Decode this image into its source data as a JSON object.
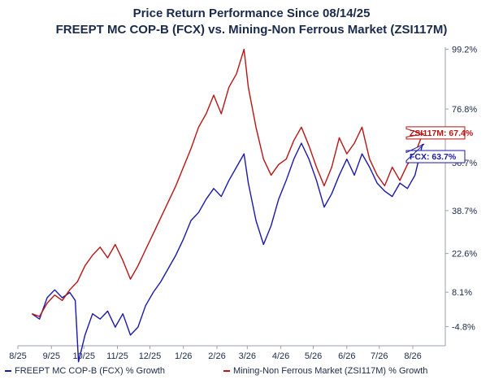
{
  "chart_data": {
    "type": "line",
    "title": "Price Return Performance Since 08/14/25",
    "subtitle": "FREEPT MC COP-B (FCX)   vs.   Mining-Non Ferrous Market (ZSI117M)",
    "ylim": [
      -12,
      100
    ],
    "y_ticks": [
      99.2,
      76.8,
      56.7,
      38.7,
      22.6,
      8.1,
      -4.8
    ],
    "y_tick_labels": [
      "99.2%",
      "76.8%",
      "56.7%",
      "38.7%",
      "22.6%",
      "8.1%",
      "-4.8%"
    ],
    "x_ticks": [
      "2025-08-01",
      "2025-09-01",
      "2025-10-01",
      "2025-11-01",
      "2025-12-01",
      "2026-01-01",
      "2026-02-01",
      "2026-03-01",
      "2026-04-01",
      "2026-05-01",
      "2026-06-01",
      "2026-07-01",
      "2026-08-01"
    ],
    "x_tick_labels": [
      "8/25",
      "9/25",
      "10/25",
      "11/25",
      "12/25",
      "1/26",
      "2/26",
      "3/26",
      "4/26",
      "5/26",
      "6/26",
      "7/26",
      "8/26"
    ],
    "grid": false,
    "legend_position": "bottom",
    "series": [
      {
        "name": "FREEPT MC COP-B (FCX) % Growth",
        "end_label": "FCX: 63.7%",
        "color": "#1a1aa8",
        "points": [
          [
            "2025-08-14",
            0
          ],
          [
            "2025-08-21",
            -2
          ],
          [
            "2025-08-28",
            6
          ],
          [
            "2025-09-04",
            9
          ],
          [
            "2025-09-11",
            6
          ],
          [
            "2025-09-18",
            8
          ],
          [
            "2025-09-23",
            5
          ],
          [
            "2025-09-26",
            -18
          ],
          [
            "2025-10-02",
            -8
          ],
          [
            "2025-10-09",
            0
          ],
          [
            "2025-10-16",
            -2
          ],
          [
            "2025-10-23",
            1
          ],
          [
            "2025-10-30",
            -5
          ],
          [
            "2025-11-06",
            0
          ],
          [
            "2025-11-13",
            -8
          ],
          [
            "2025-11-20",
            -5
          ],
          [
            "2025-11-27",
            3
          ],
          [
            "2025-12-04",
            8
          ],
          [
            "2025-12-11",
            12
          ],
          [
            "2025-12-18",
            17
          ],
          [
            "2025-12-25",
            22
          ],
          [
            "2026-01-01",
            28
          ],
          [
            "2026-01-08",
            35
          ],
          [
            "2026-01-15",
            38
          ],
          [
            "2026-01-22",
            43
          ],
          [
            "2026-01-29",
            47
          ],
          [
            "2026-02-05",
            44
          ],
          [
            "2026-02-12",
            50
          ],
          [
            "2026-02-19",
            55
          ],
          [
            "2026-02-26",
            60
          ],
          [
            "2026-03-02",
            49
          ],
          [
            "2026-03-09",
            35
          ],
          [
            "2026-03-16",
            26
          ],
          [
            "2026-03-23",
            33
          ],
          [
            "2026-03-30",
            43
          ],
          [
            "2026-04-06",
            50
          ],
          [
            "2026-04-13",
            58
          ],
          [
            "2026-04-20",
            64
          ],
          [
            "2026-04-27",
            58
          ],
          [
            "2026-05-04",
            50
          ],
          [
            "2026-05-11",
            40
          ],
          [
            "2026-05-18",
            45
          ],
          [
            "2026-05-25",
            52
          ],
          [
            "2026-06-01",
            58
          ],
          [
            "2026-06-08",
            52
          ],
          [
            "2026-06-15",
            60
          ],
          [
            "2026-06-22",
            55
          ],
          [
            "2026-06-29",
            49
          ],
          [
            "2026-07-06",
            46
          ],
          [
            "2026-07-13",
            44
          ],
          [
            "2026-07-20",
            49
          ],
          [
            "2026-07-27",
            47
          ],
          [
            "2026-08-03",
            52
          ],
          [
            "2026-08-10",
            63.7
          ]
        ]
      },
      {
        "name": "Mining-Non Ferrous Market (ZSI117M) % Growth",
        "end_label": "ZSI117M: 67.4%",
        "color": "#b81414",
        "points": [
          [
            "2025-08-14",
            0
          ],
          [
            "2025-08-21",
            -1
          ],
          [
            "2025-08-28",
            4
          ],
          [
            "2025-09-04",
            7
          ],
          [
            "2025-09-11",
            5
          ],
          [
            "2025-09-18",
            9
          ],
          [
            "2025-09-25",
            12
          ],
          [
            "2025-10-02",
            18
          ],
          [
            "2025-10-09",
            22
          ],
          [
            "2025-10-16",
            25
          ],
          [
            "2025-10-23",
            21
          ],
          [
            "2025-10-30",
            26
          ],
          [
            "2025-11-06",
            20
          ],
          [
            "2025-11-13",
            13
          ],
          [
            "2025-11-20",
            18
          ],
          [
            "2025-11-27",
            24
          ],
          [
            "2025-12-04",
            30
          ],
          [
            "2025-12-11",
            36
          ],
          [
            "2025-12-18",
            42
          ],
          [
            "2025-12-25",
            48
          ],
          [
            "2026-01-01",
            55
          ],
          [
            "2026-01-08",
            62
          ],
          [
            "2026-01-15",
            70
          ],
          [
            "2026-01-22",
            75
          ],
          [
            "2026-01-29",
            82
          ],
          [
            "2026-02-05",
            75
          ],
          [
            "2026-02-12",
            85
          ],
          [
            "2026-02-19",
            90
          ],
          [
            "2026-02-26",
            99.2
          ],
          [
            "2026-03-02",
            85
          ],
          [
            "2026-03-09",
            70
          ],
          [
            "2026-03-16",
            58
          ],
          [
            "2026-03-23",
            52
          ],
          [
            "2026-03-30",
            56
          ],
          [
            "2026-04-06",
            58
          ],
          [
            "2026-04-13",
            65
          ],
          [
            "2026-04-20",
            70
          ],
          [
            "2026-04-27",
            63
          ],
          [
            "2026-05-04",
            55
          ],
          [
            "2026-05-11",
            48
          ],
          [
            "2026-05-18",
            55
          ],
          [
            "2026-05-25",
            66
          ],
          [
            "2026-06-01",
            60
          ],
          [
            "2026-06-08",
            64
          ],
          [
            "2026-06-15",
            70
          ],
          [
            "2026-06-22",
            58
          ],
          [
            "2026-06-29",
            52
          ],
          [
            "2026-07-06",
            48
          ],
          [
            "2026-07-13",
            55
          ],
          [
            "2026-07-20",
            50
          ],
          [
            "2026-07-27",
            56
          ],
          [
            "2026-08-03",
            60
          ],
          [
            "2026-08-10",
            67.4
          ]
        ]
      }
    ]
  }
}
